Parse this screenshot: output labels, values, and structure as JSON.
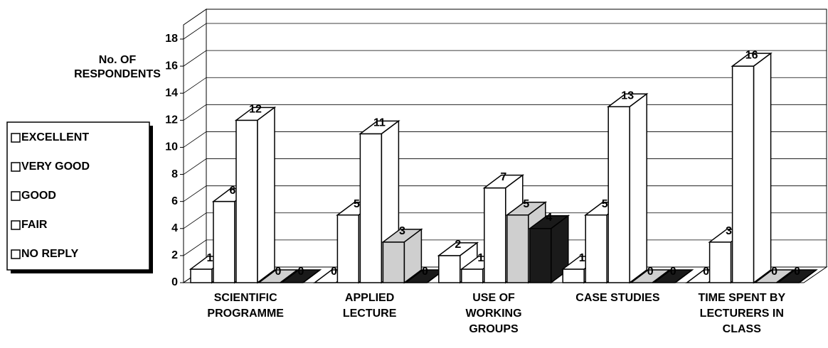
{
  "chart_data": {
    "type": "bar3d",
    "y_axis_label": "No. OF RESPONDENTS",
    "categories": [
      "SCIENTIFIC PROGRAMME",
      "APPLIED LECTURE",
      "USE OF WORKING GROUPS",
      "CASE STUDIES",
      "TIME SPENT BY LECTURERS IN CLASS"
    ],
    "series": [
      {
        "name": "EXCELLENT",
        "color": "#ffffff",
        "values": [
          1,
          0,
          2,
          1,
          0
        ]
      },
      {
        "name": "VERY GOOD",
        "color": "#ffffff",
        "values": [
          6,
          5,
          1,
          5,
          3
        ]
      },
      {
        "name": "GOOD",
        "color": "#ffffff",
        "values": [
          12,
          11,
          7,
          13,
          16
        ]
      },
      {
        "name": "FAIR",
        "color": "#cfcfcf",
        "values": [
          0,
          3,
          5,
          0,
          0
        ]
      },
      {
        "name": "NO REPLY",
        "color": "#1a1a1a",
        "values": [
          0,
          0,
          4,
          0,
          0
        ]
      }
    ],
    "ylim": [
      0,
      18
    ],
    "yticks": [
      0,
      2,
      4,
      6,
      8,
      10,
      12,
      14,
      16,
      18
    ],
    "grid": true,
    "legend": "left"
  }
}
